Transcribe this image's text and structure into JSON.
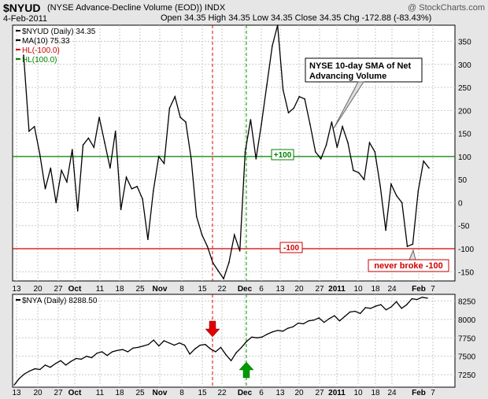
{
  "header": {
    "symbol": "$NYUD",
    "description": "(NYSE Advance-Decline Volume (EOD))  INDX",
    "watermark": "@ StockCharts.com",
    "date": "4-Feb-2011",
    "ohlc": "Open 34.35  High 34.35  Low 34.35  Close 34.35  Chg -172.88 (-83.43%)"
  },
  "colors": {
    "panel_bg": "#e6e6e6",
    "plot_bg": "#ffffff",
    "line": "#000000",
    "hl_plus": "#008000",
    "hl_minus": "#cc0000",
    "grid": "#c8c8c8",
    "red_marker": "#e00000",
    "green_marker": "#009900"
  },
  "chart_data": [
    {
      "type": "line",
      "title": "$NYUD (Daily) 34.35",
      "legend": [
        "$NYUD (Daily) 34.35",
        "MA(10) 75.33",
        "HL(-100.0)",
        "HL(100.0)"
      ],
      "legend_placement": "top-left",
      "ylim": [
        -170,
        385
      ],
      "yticks": [
        -150,
        -100,
        -50,
        0,
        50,
        100,
        150,
        200,
        250,
        300,
        350
      ],
      "xticks": [
        "13",
        "20",
        "27",
        "Oct",
        "11",
        "18",
        "25",
        "Nov",
        "8",
        "15",
        "22",
        "Dec",
        "6",
        "13",
        "20",
        "27",
        "2011",
        "10",
        "18",
        "24",
        "Feb",
        "7"
      ],
      "series": [
        {
          "name": "MA(10)",
          "values": [
            320,
            155,
            165,
            105,
            30,
            75,
            0,
            70,
            45,
            115,
            -18,
            125,
            140,
            120,
            185,
            130,
            75,
            155,
            -15,
            55,
            30,
            35,
            8,
            -80,
            25,
            100,
            85,
            205,
            230,
            185,
            175,
            95,
            -30,
            -70,
            -95,
            -130,
            -148,
            -165,
            -130,
            -70,
            -105,
            110,
            180,
            95,
            170,
            255,
            340,
            385,
            245,
            195,
            205,
            230,
            225,
            170,
            110,
            95,
            125,
            175,
            120,
            165,
            130,
            70,
            65,
            50,
            130,
            110,
            35,
            -60,
            40,
            15,
            0,
            -95,
            -90,
            25,
            90,
            75
          ]
        },
        {
          "name": "HL(100.0)",
          "level": 100
        },
        {
          "name": "HL(-100.0)",
          "level": -100
        }
      ],
      "annotations": [
        {
          "text": "NYSE 10-day SMA of Net Advancing Volume",
          "line1": "NYSE 10-day SMA of Net",
          "line2": "Advancing Volume"
        },
        {
          "text": "+100"
        },
        {
          "text": "-100"
        },
        {
          "text": "never broke -100"
        }
      ]
    },
    {
      "type": "line",
      "title": "$NYA (Daily) 8288.50",
      "legend": [
        "$NYA (Daily) 8288.50"
      ],
      "legend_placement": "top-left",
      "ylim": [
        7080,
        8340
      ],
      "yticks": [
        7250,
        7500,
        7750,
        8000,
        8250
      ],
      "xticks": [
        "13",
        "20",
        "27",
        "Oct",
        "11",
        "18",
        "25",
        "Nov",
        "8",
        "15",
        "22",
        "Dec",
        "6",
        "13",
        "20",
        "27",
        "2011",
        "10",
        "18",
        "24",
        "Feb",
        "7"
      ],
      "series": [
        {
          "name": "$NYA",
          "values": [
            7110,
            7200,
            7260,
            7300,
            7330,
            7320,
            7380,
            7350,
            7400,
            7440,
            7380,
            7430,
            7470,
            7460,
            7500,
            7480,
            7540,
            7560,
            7510,
            7560,
            7580,
            7590,
            7560,
            7610,
            7620,
            7640,
            7660,
            7720,
            7640,
            7710,
            7680,
            7650,
            7680,
            7650,
            7530,
            7600,
            7650,
            7660,
            7600,
            7560,
            7620,
            7520,
            7440,
            7550,
            7620,
            7700,
            7760,
            7750,
            7760,
            7800,
            7830,
            7850,
            7840,
            7880,
            7900,
            7950,
            7940,
            7980,
            7990,
            8020,
            7960,
            8010,
            8050,
            7980,
            8040,
            8100,
            8110,
            8080,
            8160,
            8150,
            8180,
            8200,
            8130,
            8170,
            8240,
            8150,
            8200,
            8280,
            8270,
            8300,
            8288
          ]
        }
      ]
    }
  ]
}
